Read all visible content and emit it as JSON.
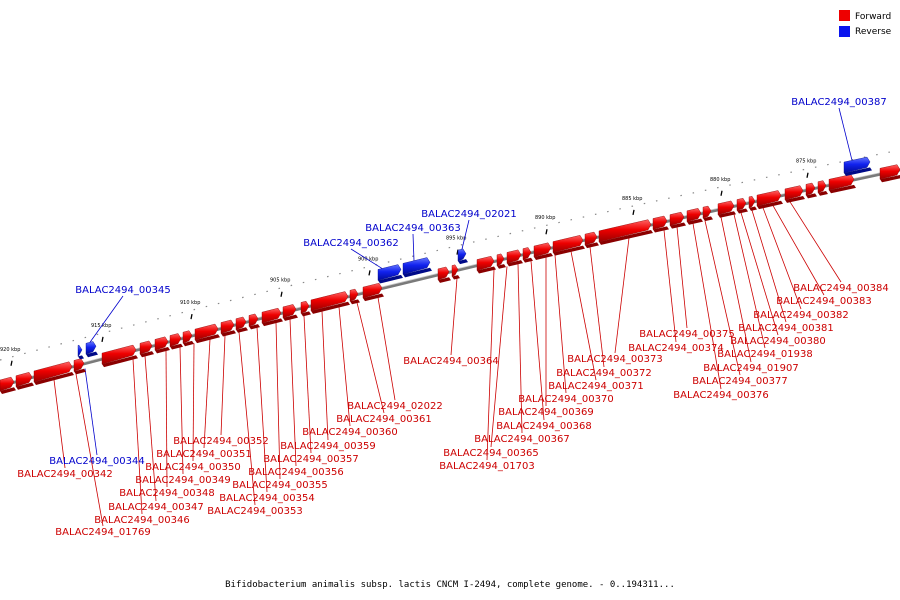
{
  "caption": "Bifidobacterium animalis subsp. lactis CNCM I-2494, complete genome. - 0..194311...",
  "legend": {
    "forward": {
      "label": "Forward",
      "color": "#ee0000"
    },
    "reverse": {
      "label": "Reverse",
      "color": "#0a14ee"
    }
  },
  "ticks": [
    "875 kbp",
    "880 kbp",
    "885 kbp",
    "890 kbp",
    "895 kbp",
    "900 kbp",
    "905 kbp",
    "910 kbp",
    "915 kbp",
    "920 kbp"
  ],
  "reverse_genes": [
    {
      "label": "BALAC2494_00387"
    },
    {
      "label": "BALAC2494_02021"
    },
    {
      "label": "BALAC2494_00363"
    },
    {
      "label": "BALAC2494_00362"
    },
    {
      "label": "BALAC2494_00345"
    },
    {
      "label": "BALAC2494_00344"
    }
  ],
  "forward_genes": [
    {
      "label": "BALAC2494_00384"
    },
    {
      "label": "BALAC2494_00383"
    },
    {
      "label": "BALAC2494_00382"
    },
    {
      "label": "BALAC2494_00381"
    },
    {
      "label": "BALAC2494_00380"
    },
    {
      "label": "BALAC2494_01938"
    },
    {
      "label": "BALAC2494_01907"
    },
    {
      "label": "BALAC2494_00377"
    },
    {
      "label": "BALAC2494_00376"
    },
    {
      "label": "BALAC2494_00375"
    },
    {
      "label": "BALAC2494_00374"
    },
    {
      "label": "BALAC2494_00373"
    },
    {
      "label": "BALAC2494_00372"
    },
    {
      "label": "BALAC2494_00371"
    },
    {
      "label": "BALAC2494_00370"
    },
    {
      "label": "BALAC2494_00369"
    },
    {
      "label": "BALAC2494_00368"
    },
    {
      "label": "BALAC2494_00367"
    },
    {
      "label": "BALAC2494_00365"
    },
    {
      "label": "BALAC2494_01703"
    },
    {
      "label": "BALAC2494_00364"
    },
    {
      "label": "BALAC2494_02022"
    },
    {
      "label": "BALAC2494_00361"
    },
    {
      "label": "BALAC2494_00360"
    },
    {
      "label": "BALAC2494_00359"
    },
    {
      "label": "BALAC2494_00357"
    },
    {
      "label": "BALAC2494_00356"
    },
    {
      "label": "BALAC2494_00355"
    },
    {
      "label": "BALAC2494_00354"
    },
    {
      "label": "BALAC2494_00353"
    },
    {
      "label": "BALAC2494_00352"
    },
    {
      "label": "BALAC2494_00351"
    },
    {
      "label": "BALAC2494_00350"
    },
    {
      "label": "BALAC2494_00349"
    },
    {
      "label": "BALAC2494_00348"
    },
    {
      "label": "BALAC2494_00347"
    },
    {
      "label": "BALAC2494_00346"
    },
    {
      "label": "BALAC2494_00342"
    },
    {
      "label": "BALAC2494_01769"
    }
  ]
}
